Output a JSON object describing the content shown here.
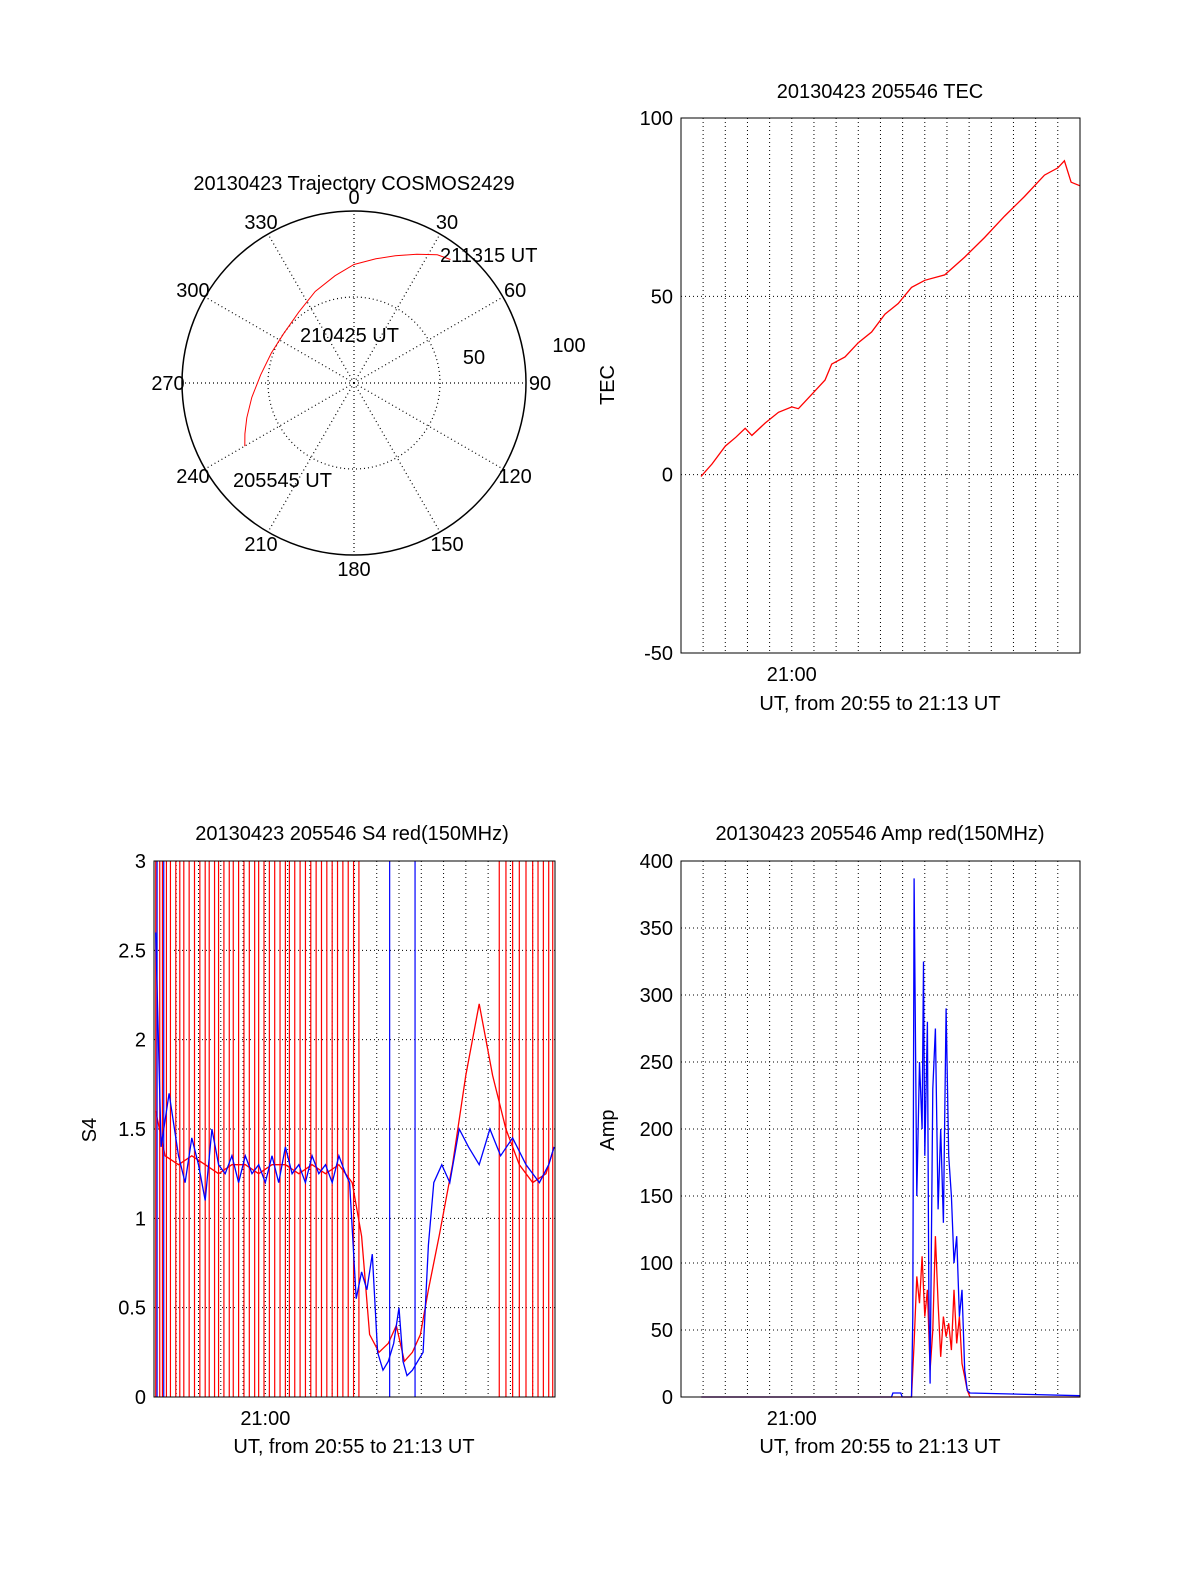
{
  "colors": {
    "series_red": "#ff0000",
    "series_blue": "#0000ff",
    "axes": "#000000",
    "grid": "#000000"
  },
  "chart_data": [
    {
      "id": "trajectory",
      "type": "polar",
      "title": "20130423 Trajectory COSMOS2429",
      "azimuth_labels": [
        "0",
        "30",
        "60",
        "90",
        "120",
        "150",
        "180",
        "210",
        "240",
        "270",
        "300",
        "330"
      ],
      "radial_labels": [
        "50",
        "100"
      ],
      "track": {
        "color": "#ff0000",
        "points": [
          {
            "az": 240,
            "el": 24
          },
          {
            "az": 245,
            "el": 27
          },
          {
            "az": 252,
            "el": 31
          },
          {
            "az": 262,
            "el": 36
          },
          {
            "az": 275,
            "el": 41
          },
          {
            "az": 290,
            "el": 44
          },
          {
            "az": 305,
            "el": 45
          },
          {
            "az": 322,
            "el": 43
          },
          {
            "az": 337,
            "el": 38
          },
          {
            "az": 350,
            "el": 33
          },
          {
            "az": 0,
            "el": 28
          },
          {
            "az": 10,
            "el": 24
          },
          {
            "az": 18,
            "el": 20
          },
          {
            "az": 26,
            "el": 15
          },
          {
            "az": 33,
            "el": 10
          },
          {
            "az": 38,
            "el": 8
          }
        ],
        "start_label": "205545 UT",
        "mid_label": "210425 UT",
        "end_label": "211315 UT"
      }
    },
    {
      "id": "tec",
      "type": "line",
      "title": "20130423 205546 TEC",
      "xlabel": "UT, from 20:55 to 21:13 UT",
      "ylabel": "TEC",
      "xlim": [
        20.9167,
        21.2167
      ],
      "ylim": [
        -50,
        100
      ],
      "yticks": [
        -50,
        0,
        50,
        100
      ],
      "xtick_labels": [
        {
          "x": 21.0,
          "label": "21:00"
        }
      ],
      "grid": true,
      "series": [
        {
          "color": "#ff0000",
          "points": [
            [
              20.9317,
              -0.5
            ],
            [
              20.94,
              3
            ],
            [
              20.95,
              8
            ],
            [
              20.958,
              10.5
            ],
            [
              20.965,
              13
            ],
            [
              20.97,
              11
            ],
            [
              20.98,
              14.5
            ],
            [
              20.99,
              17.5
            ],
            [
              21.0,
              19
            ],
            [
              21.005,
              18.5
            ],
            [
              21.015,
              22.5
            ],
            [
              21.025,
              26.5
            ],
            [
              21.03,
              31
            ],
            [
              21.04,
              33
            ],
            [
              21.05,
              37
            ],
            [
              21.06,
              40
            ],
            [
              21.07,
              45
            ],
            [
              21.08,
              48
            ],
            [
              21.09,
              52.5
            ],
            [
              21.1,
              54.5
            ],
            [
              21.115,
              56
            ],
            [
              21.13,
              61
            ],
            [
              21.145,
              66.5
            ],
            [
              21.16,
              72.5
            ],
            [
              21.175,
              78
            ],
            [
              21.19,
              84
            ],
            [
              21.2,
              86
            ],
            [
              21.205,
              88
            ],
            [
              21.21,
              82
            ],
            [
              21.2167,
              81
            ]
          ]
        }
      ]
    },
    {
      "id": "s4",
      "type": "line",
      "title": "20130423 205546 S4 red(150MHz)",
      "xlabel": "UT, from 20:55 to 21:13 UT",
      "ylabel": "S4",
      "xlim": [
        20.9167,
        21.2167
      ],
      "ylim": [
        0,
        3
      ],
      "yticks": [
        0,
        0.5,
        1,
        1.5,
        2,
        2.5,
        3
      ],
      "ytick_labels": [
        "0",
        "0.5",
        "1",
        "1.5",
        "2",
        "2.5",
        "3"
      ],
      "xtick_labels": [
        {
          "x": 21.0,
          "label": "21:00"
        }
      ],
      "grid": true,
      "series": [
        {
          "color": "#ff0000",
          "points": [
            [
              20.918,
              1.6
            ],
            [
              20.925,
              1.35
            ],
            [
              20.935,
              1.3
            ],
            [
              20.945,
              1.35
            ],
            [
              20.955,
              1.3
            ],
            [
              20.965,
              1.25
            ],
            [
              20.975,
              1.3
            ],
            [
              20.985,
              1.3
            ],
            [
              20.995,
              1.25
            ],
            [
              21.005,
              1.3
            ],
            [
              21.015,
              1.3
            ],
            [
              21.025,
              1.25
            ],
            [
              21.035,
              1.3
            ],
            [
              21.045,
              1.25
            ],
            [
              21.055,
              1.3
            ],
            [
              21.065,
              1.2
            ],
            [
              21.072,
              0.9
            ],
            [
              21.078,
              0.35
            ],
            [
              21.085,
              0.25
            ],
            [
              21.092,
              0.3
            ],
            [
              21.098,
              0.4
            ],
            [
              21.104,
              0.2
            ],
            [
              21.11,
              0.25
            ],
            [
              21.116,
              0.35
            ],
            [
              21.122,
              0.6
            ],
            [
              21.13,
              0.9
            ],
            [
              21.14,
              1.3
            ],
            [
              21.15,
              1.8
            ],
            [
              21.16,
              2.2
            ],
            [
              21.17,
              1.8
            ],
            [
              21.18,
              1.5
            ],
            [
              21.19,
              1.3
            ],
            [
              21.2,
              1.2
            ],
            [
              21.21,
              1.25
            ],
            [
              21.216,
              1.4
            ]
          ],
          "spikes_x": [
            20.918,
            20.921,
            20.923,
            20.926,
            20.929,
            20.933,
            20.936,
            20.939,
            20.943,
            20.947,
            20.951,
            20.955,
            20.958,
            20.962,
            20.965,
            20.969,
            20.973,
            20.976,
            20.98,
            20.984,
            20.988,
            20.992,
            20.995,
            20.999,
            21.003,
            21.007,
            21.011,
            21.015,
            21.018,
            21.022,
            21.026,
            21.03,
            21.034,
            21.038,
            21.042,
            21.046,
            21.05,
            21.054,
            21.058,
            21.062,
            21.066,
            21.07,
            21.175,
            21.18,
            21.185,
            21.19,
            21.195,
            21.2,
            21.204,
            21.208,
            21.212,
            21.215
          ]
        },
        {
          "color": "#0000ff",
          "points": [
            [
              20.918,
              2.6
            ],
            [
              20.922,
              1.4
            ],
            [
              20.928,
              1.7
            ],
            [
              20.935,
              1.35
            ],
            [
              20.94,
              1.2
            ],
            [
              20.945,
              1.45
            ],
            [
              20.95,
              1.3
            ],
            [
              20.955,
              1.1
            ],
            [
              20.96,
              1.5
            ],
            [
              20.965,
              1.3
            ],
            [
              20.97,
              1.25
            ],
            [
              20.975,
              1.35
            ],
            [
              20.98,
              1.2
            ],
            [
              20.985,
              1.35
            ],
            [
              20.99,
              1.25
            ],
            [
              20.995,
              1.3
            ],
            [
              21.0,
              1.2
            ],
            [
              21.005,
              1.35
            ],
            [
              21.01,
              1.2
            ],
            [
              21.015,
              1.4
            ],
            [
              21.02,
              1.25
            ],
            [
              21.025,
              1.3
            ],
            [
              21.03,
              1.2
            ],
            [
              21.035,
              1.35
            ],
            [
              21.04,
              1.25
            ],
            [
              21.045,
              1.3
            ],
            [
              21.05,
              1.2
            ],
            [
              21.055,
              1.35
            ],
            [
              21.06,
              1.25
            ],
            [
              21.063,
              1.2
            ],
            [
              21.068,
              0.55
            ],
            [
              21.072,
              0.7
            ],
            [
              21.076,
              0.6
            ],
            [
              21.08,
              0.8
            ],
            [
              21.084,
              0.25
            ],
            [
              21.088,
              0.15
            ],
            [
              21.092,
              0.2
            ],
            [
              21.096,
              0.3
            ],
            [
              21.1,
              0.5
            ],
            [
              21.103,
              0.2
            ],
            [
              21.106,
              0.12
            ],
            [
              21.11,
              0.15
            ],
            [
              21.114,
              0.2
            ],
            [
              21.118,
              0.25
            ],
            [
              21.122,
              0.85
            ],
            [
              21.126,
              1.2
            ],
            [
              21.132,
              1.3
            ],
            [
              21.138,
              1.2
            ],
            [
              21.145,
              1.5
            ],
            [
              21.152,
              1.4
            ],
            [
              21.16,
              1.3
            ],
            [
              21.168,
              1.5
            ],
            [
              21.176,
              1.35
            ],
            [
              21.185,
              1.45
            ],
            [
              21.195,
              1.3
            ],
            [
              21.205,
              1.2
            ],
            [
              21.212,
              1.3
            ],
            [
              21.216,
              1.4
            ]
          ],
          "spikes_x": [
            20.919,
            20.924,
            21.093,
            21.112
          ]
        }
      ]
    },
    {
      "id": "amp",
      "type": "line",
      "title": "20130423 205546 Amp red(150MHz)",
      "xlabel": "UT, from 20:55 to 21:13 UT",
      "ylabel": "Amp",
      "xlim": [
        20.9167,
        21.2167
      ],
      "ylim": [
        0,
        400
      ],
      "yticks": [
        0,
        50,
        100,
        150,
        200,
        250,
        300,
        350,
        400
      ],
      "xtick_labels": [
        {
          "x": 21.0,
          "label": "21:00"
        }
      ],
      "grid": true,
      "series": [
        {
          "color": "#ff0000",
          "points": [
            [
              20.932,
              0
            ],
            [
              21.09,
              0
            ],
            [
              21.092,
              40
            ],
            [
              21.094,
              90
            ],
            [
              21.096,
              70
            ],
            [
              21.098,
              105
            ],
            [
              21.1,
              60
            ],
            [
              21.102,
              80
            ],
            [
              21.104,
              20
            ],
            [
              21.106,
              50
            ],
            [
              21.108,
              120
            ],
            [
              21.11,
              70
            ],
            [
              21.112,
              30
            ],
            [
              21.114,
              60
            ],
            [
              21.116,
              45
            ],
            [
              21.118,
              55
            ],
            [
              21.12,
              35
            ],
            [
              21.122,
              80
            ],
            [
              21.124,
              40
            ],
            [
              21.126,
              60
            ],
            [
              21.128,
              25
            ],
            [
              21.13,
              15
            ],
            [
              21.132,
              5
            ],
            [
              21.134,
              0
            ],
            [
              21.2167,
              0
            ]
          ]
        },
        {
          "color": "#0000ff",
          "points": [
            [
              20.932,
              0
            ],
            [
              21.075,
              0
            ],
            [
              21.076,
              3
            ],
            [
              21.082,
              3
            ],
            [
              21.083,
              0
            ],
            [
              21.09,
              0
            ],
            [
              21.091,
              60
            ],
            [
              21.092,
              387
            ],
            [
              21.094,
              150
            ],
            [
              21.096,
              250
            ],
            [
              21.098,
              200
            ],
            [
              21.099,
              325
            ],
            [
              21.1,
              180
            ],
            [
              21.102,
              280
            ],
            [
              21.103,
              80
            ],
            [
              21.104,
              10
            ],
            [
              21.106,
              230
            ],
            [
              21.108,
              275
            ],
            [
              21.11,
              140
            ],
            [
              21.112,
              200
            ],
            [
              21.114,
              130
            ],
            [
              21.116,
              290
            ],
            [
              21.118,
              180
            ],
            [
              21.12,
              150
            ],
            [
              21.122,
              100
            ],
            [
              21.124,
              120
            ],
            [
              21.126,
              60
            ],
            [
              21.128,
              80
            ],
            [
              21.13,
              20
            ],
            [
              21.132,
              5
            ],
            [
              21.134,
              3
            ],
            [
              21.2167,
              1
            ]
          ]
        }
      ]
    }
  ]
}
